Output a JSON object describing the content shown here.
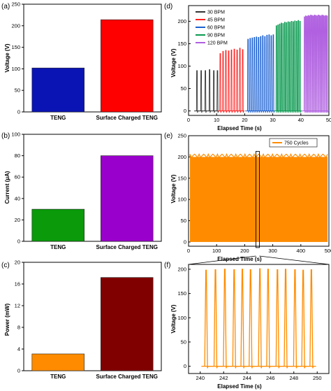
{
  "chart_data": [
    {
      "panel": "(a)",
      "type": "bar",
      "categories": [
        "TENG",
        "Surface Charged TENG"
      ],
      "values": [
        102,
        214
      ],
      "colors": [
        "#0a14b4",
        "#ff0000"
      ],
      "ylabel": "Voltage (V)",
      "ylim": [
        0,
        250
      ],
      "yticks": [
        0,
        50,
        100,
        150,
        200,
        250
      ],
      "grid": false
    },
    {
      "panel": "(b)",
      "type": "bar",
      "categories": [
        "TENG",
        "Surface Charged TENG"
      ],
      "values": [
        30,
        80
      ],
      "colors": [
        "#0a9a0a",
        "#9a00cc"
      ],
      "ylabel": "Current (µA)",
      "ylim": [
        0,
        100
      ],
      "yticks": [
        0,
        20,
        40,
        60,
        80,
        100
      ],
      "grid": false
    },
    {
      "panel": "(c)",
      "type": "bar",
      "categories": [
        "TENG",
        "Surface Charged TENG"
      ],
      "values": [
        3.1,
        17.2
      ],
      "colors": [
        "#ff8c00",
        "#800000"
      ],
      "ylabel": "Power (mW)",
      "ylim": [
        0,
        20
      ],
      "yticks": [
        0,
        4,
        8,
        12,
        16,
        20
      ],
      "grid": false
    },
    {
      "panel": "(d)",
      "type": "line",
      "xlabel": "Elapsed Time (s)",
      "ylabel": "Voltage (V)",
      "xlim": [
        0,
        50
      ],
      "ylim": [
        -10,
        235
      ],
      "xticks": [
        0,
        10,
        20,
        30,
        40,
        50
      ],
      "yticks": [
        0,
        50,
        100,
        150,
        200
      ],
      "legend_position": "top-left",
      "series": [
        {
          "name": "30 BPM",
          "color": "#333333",
          "peaks": [
            [
              3,
              90
            ],
            [
              4.5,
              90
            ],
            [
              6,
              90
            ],
            [
              7.5,
              92
            ],
            [
              9,
              90
            ],
            [
              10.3,
              90
            ]
          ]
        },
        {
          "name": "45 BPM",
          "color": "#ff2020",
          "peaks": [
            [
              11.3,
              128
            ],
            [
              12.3,
              133
            ],
            [
              13.3,
              135
            ],
            [
              14.3,
              134
            ],
            [
              15.3,
              136
            ],
            [
              16.3,
              138
            ],
            [
              17.3,
              136
            ],
            [
              18.3,
              140
            ],
            [
              19.3,
              137
            ]
          ]
        },
        {
          "name": "60 BPM",
          "color": "#1a5fd0",
          "peaks": [
            [
              21.2,
              160
            ],
            [
              21.95,
              162
            ],
            [
              22.7,
              163
            ],
            [
              23.45,
              164
            ],
            [
              24.2,
              165
            ],
            [
              24.95,
              164
            ],
            [
              25.7,
              166
            ],
            [
              26.45,
              168
            ],
            [
              27.2,
              166
            ],
            [
              27.95,
              169
            ],
            [
              28.7,
              170
            ],
            [
              29.45,
              168
            ],
            [
              30.2,
              170
            ]
          ]
        },
        {
          "name": "90 BPM",
          "color": "#0a9a50",
          "peaks": [
            [
              31.3,
              190
            ],
            [
              31.9,
              192
            ],
            [
              32.5,
              194
            ],
            [
              33.1,
              196
            ],
            [
              33.7,
              195
            ],
            [
              34.3,
              198
            ],
            [
              34.9,
              197
            ],
            [
              35.5,
              199
            ],
            [
              36.1,
              198
            ],
            [
              36.7,
              200
            ],
            [
              37.3,
              199
            ],
            [
              37.9,
              201
            ],
            [
              38.5,
              200
            ],
            [
              39.1,
              202
            ],
            [
              39.7,
              200
            ]
          ]
        },
        {
          "name": "120 BPM",
          "color": "#b060e0",
          "peaks": [
            [
              41.3,
              210
            ],
            [
              41.75,
              212
            ],
            [
              42.2,
              211
            ],
            [
              42.65,
              213
            ],
            [
              43.1,
              212
            ],
            [
              43.55,
              214
            ],
            [
              44,
              213
            ],
            [
              44.45,
              212
            ],
            [
              44.9,
              214
            ],
            [
              45.35,
              213
            ],
            [
              45.8,
              212
            ],
            [
              46.25,
              214
            ],
            [
              46.7,
              213
            ],
            [
              47.15,
              212
            ],
            [
              47.6,
              214
            ],
            [
              48.05,
              213
            ],
            [
              48.5,
              212
            ],
            [
              48.95,
              213
            ],
            [
              49.4,
              212
            ]
          ]
        }
      ]
    },
    {
      "panel": "(e)",
      "type": "area",
      "xlabel": "Elapsed Time (s)",
      "ylabel": "Voltage (V)",
      "xlim": [
        0,
        500
      ],
      "ylim": [
        -10,
        250
      ],
      "xticks": [
        0,
        100,
        200,
        300,
        400,
        500
      ],
      "xtick_labels": [
        "0",
        "100",
        "200",
        "300",
        "400",
        "500"
      ],
      "yticks": [
        0,
        50,
        100,
        150,
        200,
        250
      ],
      "series": [
        {
          "name": "750 Cycles",
          "color": "#ff8c00",
          "min": 0,
          "max": 200
        }
      ],
      "highlight_range": [
        240,
        250
      ],
      "legend_position": "top-right"
    },
    {
      "panel": "(f)",
      "type": "line",
      "xlabel": "Elapsed Time (s)",
      "ylabel": "Voltage (V)",
      "xlim": [
        239,
        251
      ],
      "ylim": [
        -15,
        210
      ],
      "xticks": [
        240,
        242,
        244,
        246,
        248,
        250
      ],
      "yticks": [
        0,
        50,
        100,
        150,
        200
      ],
      "series": [
        {
          "color": "#ff8c00",
          "peaks": [
            [
              240.5,
              198
            ],
            [
              241.3,
              199
            ],
            [
              242.1,
              200
            ],
            [
              242.9,
              199
            ],
            [
              243.6,
              200
            ],
            [
              244.3,
              199
            ],
            [
              245.1,
              201
            ],
            [
              245.8,
              200
            ],
            [
              246.6,
              199
            ],
            [
              247.3,
              200
            ],
            [
              248.1,
              199
            ],
            [
              248.8,
              198
            ],
            [
              249.5,
              199
            ]
          ]
        }
      ]
    }
  ]
}
